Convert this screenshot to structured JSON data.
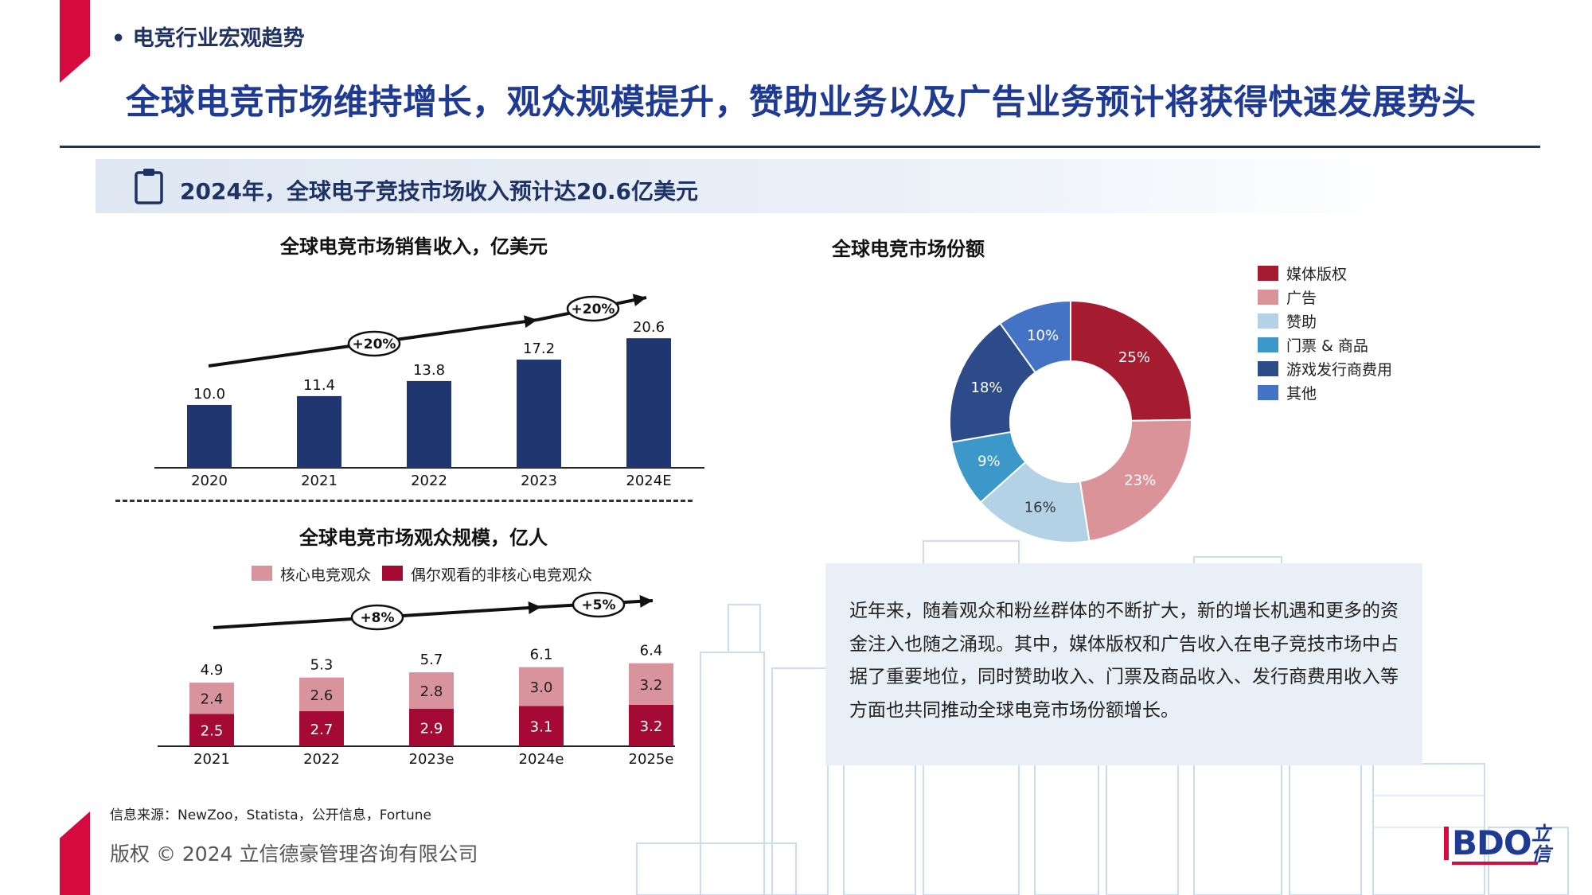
{
  "header": {
    "section": "• 电竞行业宏观趋势",
    "headline": "全球电竞市场维持增长，观众规模提升，赞助业务以及广告业务预计将获得快速发展势头"
  },
  "banner": {
    "text": "2024年，全球电子竞技市场收入预计达20.6亿美元",
    "icon": "clipboard-icon"
  },
  "colors": {
    "navy": "#1f3670",
    "core": "#d9939c",
    "casual": "#a50a35",
    "accent": "#d60a3f"
  },
  "chart_data": [
    {
      "type": "bar",
      "title": "全球电竞市场销售收入，亿美元",
      "categories": [
        "2020",
        "2021",
        "2022",
        "2023",
        "2024E"
      ],
      "values": [
        10.0,
        11.4,
        13.8,
        17.2,
        20.6
      ],
      "value_labels": [
        "10.0",
        "11.4",
        "13.8",
        "17.2",
        "20.6"
      ],
      "growth_labels": [
        "+20%",
        "+20%"
      ]
    },
    {
      "type": "bar",
      "title": "全球电竞市场观众规模，亿人",
      "categories": [
        "2021",
        "2022",
        "2023e",
        "2024e",
        "2025e"
      ],
      "series": [
        {
          "name": "核心电竞观众",
          "values": [
            2.4,
            2.6,
            2.8,
            3.0,
            3.2
          ],
          "labels": [
            "2.4",
            "2.6",
            "2.8",
            "3.0",
            "3.2"
          ]
        },
        {
          "name": "偶尔观看的非核心电竞观众",
          "values": [
            2.5,
            2.7,
            2.9,
            3.1,
            3.2
          ],
          "labels": [
            "2.5",
            "2.7",
            "2.9",
            "3.1",
            "3.2"
          ]
        }
      ],
      "totals": [
        "4.9",
        "5.3",
        "5.7",
        "6.1",
        "6.4"
      ],
      "growth_labels": [
        "+8%",
        "+5%"
      ]
    },
    {
      "type": "pie",
      "title": "全球电竞市场份额",
      "labels": [
        "媒体版权",
        "广告",
        "赞助",
        "门票 & 商品",
        "游戏发行商费用",
        "其他"
      ],
      "values": [
        25,
        23,
        16,
        9,
        18,
        10
      ],
      "value_labels": [
        "25%",
        "23%",
        "16%",
        "9%",
        "18%",
        "10%"
      ],
      "colors": [
        "#a51c30",
        "#d99399",
        "#b3d2e6",
        "#3c98c9",
        "#2c4b88",
        "#4472c4"
      ]
    }
  ],
  "textbox": {
    "body": "近年来，随着观众和粉丝群体的不断扩大，新的增长机遇和更多的资金注入也随之涌现。其中，媒体版权和广告收入在电子竞技市场中占据了重要地位，同时赞助收入、门票及商品收入、发行商费用收入等方面也共同推动全球电竞市场份额增长。"
  },
  "footer": {
    "source": "信息来源：NewZoo，Statista，公开信息，Fortune",
    "copyright": "版权 © 2024 立信德豪管理咨询有限公司",
    "logo_text": "BDO",
    "logo_cn": "立信"
  }
}
